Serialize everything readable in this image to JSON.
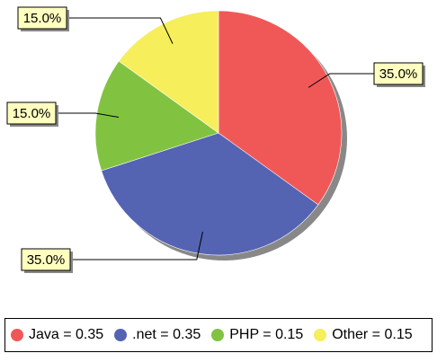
{
  "chart_data": {
    "type": "pie",
    "slices": [
      {
        "label": "Java",
        "value": 0.35,
        "percent_label": "35.0%",
        "color": "#f05858",
        "legend": "Java = 0.35"
      },
      {
        "label": ".net",
        "value": 0.35,
        "percent_label": "35.0%",
        "color": "#5563b3",
        "legend": ".net = 0.35"
      },
      {
        "label": "PHP",
        "value": 0.15,
        "percent_label": "15.0%",
        "color": "#81c340",
        "legend": "PHP = 0.15"
      },
      {
        "label": "Other",
        "value": 0.15,
        "percent_label": "15.0%",
        "color": "#f6ee5a",
        "legend": "Other = 0.15"
      }
    ],
    "start": "top",
    "direction": "clockwise",
    "legend_position": "bottom",
    "label_box_color": "#ffffc0",
    "shadow_color": "#888888"
  }
}
